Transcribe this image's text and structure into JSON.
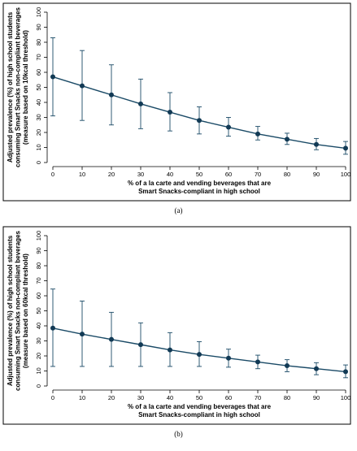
{
  "chart_data": [
    {
      "type": "line",
      "caption": "(a)",
      "title": "",
      "ylabel_lines": [
        "Adjusted prevalence (%) of high school students",
        "consuming Smart Snacks non-compliant beverages",
        "(measure based on 10kcal threshold)"
      ],
      "xlabel_lines": [
        "% of a la carte and vending beverages that are",
        "Smart Snacks-compliant in high school"
      ],
      "xlim": [
        0,
        100
      ],
      "ylim": [
        0,
        100
      ],
      "x_ticks": [
        "0",
        "10",
        "20",
        "30",
        "40",
        "50",
        "60",
        "70",
        "80",
        "90",
        "100"
      ],
      "y_ticks": [
        "0",
        "10",
        "20",
        "30",
        "40",
        "50",
        "60",
        "70",
        "80",
        "90",
        "100"
      ],
      "grid": false,
      "series": [
        {
          "x": [
            0,
            10,
            20,
            30,
            40,
            50,
            60,
            70,
            80,
            90,
            100
          ],
          "y": [
            57,
            51,
            45,
            39,
            33.5,
            28,
            23.5,
            19,
            15.5,
            12,
            9.5
          ],
          "lower": [
            31,
            28,
            25,
            22.5,
            21,
            19,
            17.5,
            15,
            12,
            8.5,
            5.5
          ],
          "upper": [
            83,
            74.5,
            65,
            55.5,
            46.5,
            37,
            30,
            24,
            19.5,
            16,
            14
          ]
        }
      ]
    },
    {
      "type": "line",
      "caption": "(b)",
      "title": "",
      "ylabel_lines": [
        "Adjusted prevalence (%) of high school students",
        "consuming Smart Snacks non-compliant beverages",
        "(measure based on 60kcal threshold)"
      ],
      "xlabel_lines": [
        "% of a la carte and vending beverages that are",
        "Smart Snacks-compliant in high school"
      ],
      "xlim": [
        0,
        100
      ],
      "ylim": [
        0,
        100
      ],
      "x_ticks": [
        "0",
        "10",
        "20",
        "30",
        "40",
        "50",
        "60",
        "70",
        "80",
        "90",
        "100"
      ],
      "y_ticks": [
        "0",
        "10",
        "20",
        "30",
        "40",
        "50",
        "60",
        "70",
        "80",
        "90",
        "100"
      ],
      "grid": false,
      "series": [
        {
          "x": [
            0,
            10,
            20,
            30,
            40,
            50,
            60,
            70,
            80,
            90,
            100
          ],
          "y": [
            38.5,
            34.5,
            31,
            27.5,
            24,
            21,
            18.5,
            16,
            13.5,
            11.5,
            9.5
          ],
          "lower": [
            13,
            13,
            13,
            13,
            13,
            13,
            12.5,
            11.5,
            9.5,
            7.5,
            5.5
          ],
          "upper": [
            64.5,
            56.5,
            49,
            42,
            35.5,
            29.5,
            24.5,
            20.5,
            17.5,
            15.5,
            14
          ]
        }
      ]
    }
  ]
}
